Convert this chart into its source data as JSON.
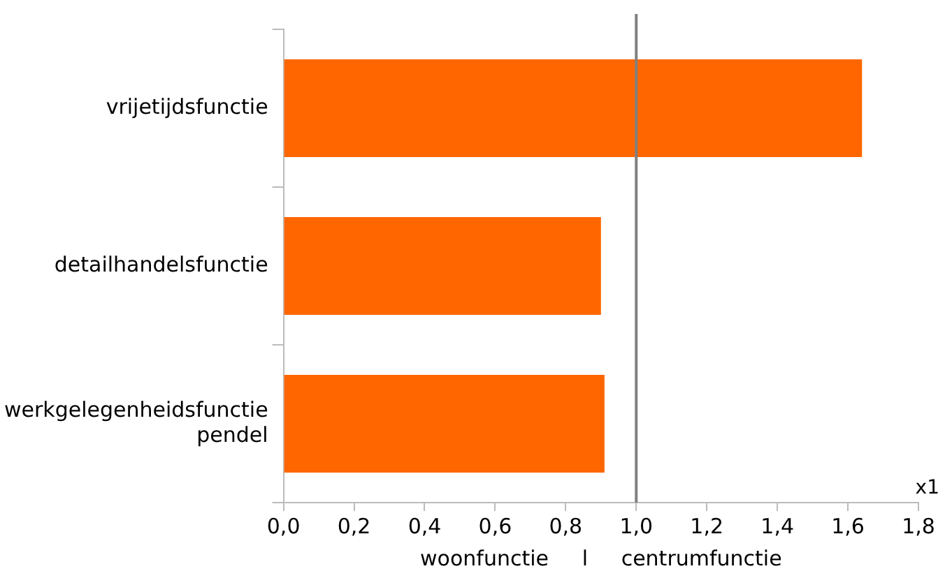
{
  "chart_data": {
    "type": "bar",
    "orientation": "horizontal",
    "categories": [
      "vrijetijdsfunctie",
      "detailhandelsfunctie",
      "werkgelegenheidsfunctie\npendel"
    ],
    "values": [
      1.64,
      0.9,
      0.91
    ],
    "color": "#ff6600",
    "xlim": [
      0,
      1.8
    ],
    "xticks": [
      {
        "value": 0,
        "label": "0,0"
      },
      {
        "value": 0.2,
        "label": "0,2"
      },
      {
        "value": 0.4,
        "label": "0,4"
      },
      {
        "value": 0.6,
        "label": "0,6"
      },
      {
        "value": 0.8,
        "label": "0,8"
      },
      {
        "value": 1,
        "label": "1,0"
      },
      {
        "value": 1.2,
        "label": "1,2"
      },
      {
        "value": 1.4,
        "label": "1,4"
      },
      {
        "value": 1.6,
        "label": "1,6"
      },
      {
        "value": 1.8,
        "label": "1,8"
      }
    ],
    "xlabel": "woonfunctie     l     centrumfunctie",
    "ref_lines": [
      {
        "axis": "x",
        "value": 1,
        "color": "#808080"
      }
    ],
    "annotations": [
      "x1"
    ],
    "grid": false,
    "legend": false
  }
}
